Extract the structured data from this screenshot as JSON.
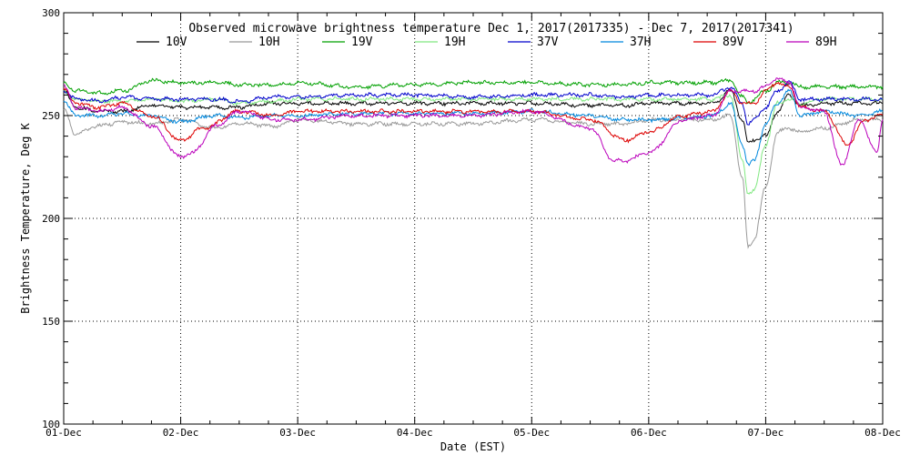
{
  "chart_data": {
    "type": "line",
    "title": "Observed microwave brightness temperature Dec  1, 2017(2017335) - Dec  7, 2017(2017341)",
    "xlabel": "Date (EST)",
    "ylabel": "Brightness Temperature, Deg K",
    "x_ticks": [
      "01-Dec",
      "02-Dec",
      "03-Dec",
      "04-Dec",
      "05-Dec",
      "06-Dec",
      "07-Dec",
      "08-Dec"
    ],
    "x_range_days": [
      0,
      7
    ],
    "ylim": [
      100,
      300
    ],
    "y_ticks": [
      100,
      150,
      200,
      250,
      300
    ],
    "grid": true,
    "grid_style": "dotted",
    "legend_position": "top",
    "series": [
      {
        "name": "10V",
        "color": "#000000",
        "x": [
          0,
          0.1,
          0.3,
          0.5,
          0.75,
          1.0,
          1.3,
          1.5,
          1.8,
          2.0,
          2.5,
          3.0,
          3.5,
          4.0,
          4.5,
          4.8,
          5.0,
          5.4,
          5.55,
          5.7,
          5.8,
          5.85,
          5.9,
          6.0,
          6.1,
          6.2,
          6.3,
          6.5,
          7.0
        ],
        "values": [
          262,
          254,
          252,
          252,
          255,
          254,
          254,
          254,
          256,
          256,
          256,
          256,
          256,
          256,
          255,
          255,
          256,
          256,
          256,
          262,
          248,
          237,
          238,
          240,
          252,
          260,
          255,
          256,
          256
        ]
      },
      {
        "name": "10H",
        "color": "#999999",
        "x": [
          0,
          0.1,
          0.3,
          0.5,
          0.75,
          1.0,
          1.3,
          1.5,
          1.8,
          2.0,
          2.5,
          3.0,
          3.5,
          4.0,
          4.5,
          4.8,
          5.0,
          5.4,
          5.55,
          5.7,
          5.8,
          5.85,
          5.9,
          6.0,
          6.1,
          6.2,
          6.3,
          6.5,
          6.8,
          7.0
        ],
        "values": [
          253,
          241,
          245,
          247,
          246,
          248,
          244,
          246,
          245,
          248,
          246,
          246,
          246,
          248,
          246,
          246,
          248,
          248,
          248,
          250,
          220,
          186,
          190,
          215,
          242,
          244,
          242,
          244,
          248,
          248
        ]
      },
      {
        "name": "19V",
        "color": "#00a000",
        "x": [
          0,
          0.1,
          0.3,
          0.5,
          0.75,
          1.0,
          1.3,
          1.5,
          1.8,
          2.0,
          2.5,
          3.0,
          3.5,
          4.0,
          4.5,
          4.8,
          5.0,
          5.4,
          5.55,
          5.7,
          5.8,
          5.85,
          5.9,
          6.0,
          6.1,
          6.2,
          6.3,
          6.5,
          7.0
        ],
        "values": [
          266,
          262,
          261,
          262,
          267,
          266,
          266,
          265,
          265,
          266,
          264,
          265,
          266,
          266,
          265,
          265,
          266,
          266,
          266,
          267,
          259,
          256,
          258,
          262,
          266,
          266,
          264,
          264,
          264
        ]
      },
      {
        "name": "19H",
        "color": "#80e880",
        "x": [
          0,
          0.1,
          0.3,
          0.5,
          0.75,
          1.0,
          1.3,
          1.5,
          1.8,
          2.0,
          2.5,
          3.0,
          3.5,
          4.0,
          4.5,
          4.8,
          5.0,
          5.4,
          5.55,
          5.7,
          5.8,
          5.85,
          5.9,
          6.0,
          6.1,
          6.2,
          6.3,
          6.5,
          7.0
        ],
        "values": [
          262,
          258,
          257,
          257,
          258,
          257,
          258,
          256,
          257,
          258,
          258,
          258,
          258,
          258,
          258,
          258,
          258,
          258,
          258,
          260,
          228,
          212,
          214,
          236,
          256,
          258,
          256,
          258,
          258
        ]
      },
      {
        "name": "37V",
        "color": "#0000cc",
        "x": [
          0,
          0.1,
          0.3,
          0.5,
          0.75,
          1.0,
          1.3,
          1.5,
          1.8,
          2.0,
          2.5,
          3.0,
          3.5,
          4.0,
          4.5,
          4.8,
          5.0,
          5.4,
          5.55,
          5.7,
          5.8,
          5.85,
          5.9,
          6.0,
          6.1,
          6.2,
          6.3,
          6.5,
          7.0
        ],
        "values": [
          262,
          258,
          257,
          259,
          258,
          258,
          258,
          257,
          259,
          259,
          260,
          260,
          259,
          260,
          260,
          259,
          260,
          260,
          260,
          264,
          256,
          246,
          248,
          254,
          262,
          266,
          258,
          258,
          258
        ]
      },
      {
        "name": "37H",
        "color": "#0088dd",
        "x": [
          0,
          0.1,
          0.3,
          0.5,
          0.75,
          1.0,
          1.3,
          1.5,
          1.8,
          2.0,
          2.5,
          3.0,
          3.5,
          4.0,
          4.5,
          4.8,
          5.0,
          5.4,
          5.55,
          5.7,
          5.8,
          5.85,
          5.9,
          6.0,
          6.1,
          6.2,
          6.3,
          6.5,
          6.8,
          7.0
        ],
        "values": [
          257,
          250,
          250,
          251,
          250,
          247,
          250,
          249,
          250,
          250,
          251,
          251,
          251,
          252,
          250,
          248,
          248,
          249,
          250,
          256,
          236,
          226,
          228,
          246,
          256,
          262,
          250,
          252,
          250,
          252
        ]
      },
      {
        "name": "89V",
        "color": "#dd0000",
        "x": [
          0,
          0.1,
          0.3,
          0.5,
          0.75,
          1.0,
          1.2,
          1.5,
          1.8,
          2.0,
          2.5,
          3.0,
          3.5,
          4.0,
          4.5,
          4.8,
          5.0,
          5.3,
          5.55,
          5.7,
          5.8,
          5.9,
          6.0,
          6.1,
          6.2,
          6.3,
          6.5,
          6.7,
          6.85,
          7.0
        ],
        "values": [
          263,
          256,
          254,
          256,
          250,
          238,
          244,
          252,
          250,
          252,
          252,
          252,
          252,
          252,
          248,
          238,
          242,
          250,
          252,
          262,
          256,
          256,
          262,
          266,
          264,
          254,
          252,
          236,
          248,
          250
        ]
      },
      {
        "name": "89H",
        "color": "#bb00bb",
        "x": [
          0,
          0.1,
          0.3,
          0.5,
          0.75,
          1.0,
          1.1,
          1.3,
          1.5,
          1.8,
          2.0,
          2.5,
          3.0,
          3.5,
          4.0,
          4.5,
          4.7,
          4.8,
          5.0,
          5.3,
          5.55,
          5.7,
          5.8,
          5.9,
          6.0,
          6.1,
          6.2,
          6.3,
          6.5,
          6.65,
          6.8,
          6.95,
          7.0
        ],
        "values": [
          264,
          254,
          252,
          254,
          245,
          230,
          232,
          245,
          252,
          248,
          248,
          250,
          250,
          250,
          252,
          244,
          228,
          228,
          232,
          248,
          250,
          262,
          262,
          262,
          264,
          268,
          266,
          254,
          252,
          226,
          248,
          232,
          248
        ]
      }
    ]
  }
}
